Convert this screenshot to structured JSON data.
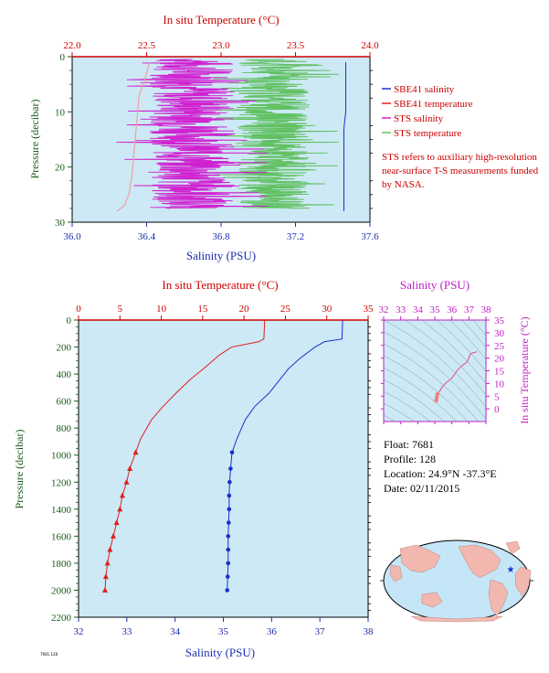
{
  "colors": {
    "plot_bg": "#cce9f5",
    "sbe41_salinity": "#1a2fcc",
    "sbe41_temperature": "#e02020",
    "sts_salinity": "#d020d0",
    "sts_temperature": "#60c060",
    "temperature_axis": "#cc0000",
    "salinity_axis": "#1a2fb0",
    "pressure_axis": "#1a5a1a",
    "ts_axis": "#c020c0",
    "land": "#f2b8b0",
    "ocean": "#c4e6f6"
  },
  "float_info": {
    "float": "Float:  7681",
    "profile": "Profile:  128",
    "location": "Location:  24.9°N  -37.3°E",
    "date": "Date:  02/11/2015"
  },
  "note_text": "STS refers to auxiliary high-resolution near-surface T-S measurements funded by NASA.",
  "footer_text": "7681.128",
  "map": {
    "marker": "float-position-star"
  },
  "chart_data": [
    {
      "type": "line",
      "id": "near-surface",
      "xlabel": "Salinity (PSU)",
      "x2label": "In situ Temperature (°C)",
      "ylabel": "Pressure (decibar)",
      "xlim": [
        36.0,
        37.6
      ],
      "x2lim": [
        22.0,
        24.0
      ],
      "ylim": [
        30,
        0
      ],
      "xticks": [
        "36.0",
        "36.4",
        "36.8",
        "37.2",
        "37.6"
      ],
      "x2ticks": [
        "22.0",
        "22.5",
        "23.0",
        "23.5",
        "24.0"
      ],
      "yticks": [
        "0",
        "10",
        "20",
        "30"
      ],
      "legend": [
        "SBE41 salinity",
        "SBE41 temperature",
        "STS salinity",
        "STS temperature"
      ],
      "legend_position": "right",
      "series": [
        {
          "name": "SBE41 salinity",
          "axis": "salinity",
          "x": [
            37.47,
            37.47,
            37.47,
            37.47,
            37.46,
            37.46,
            37.46,
            37.46,
            37.46,
            37.46
          ],
          "y": [
            1,
            4,
            7,
            10,
            13,
            16,
            19,
            22,
            25,
            28
          ]
        },
        {
          "name": "SBE41 temperature",
          "axis": "temperature",
          "x": [
            22.52,
            22.49,
            22.45,
            22.44,
            22.43,
            22.42,
            22.41,
            22.4,
            22.38,
            22.35,
            22.3
          ],
          "y": [
            1,
            4,
            7,
            10,
            13,
            16,
            19,
            22,
            25,
            27,
            28
          ]
        },
        {
          "name": "STS salinity",
          "axis": "salinity",
          "x_range": [
            36.2,
            37.05
          ],
          "center": 36.65,
          "y_range": [
            0.5,
            27.5
          ],
          "pattern": "noisy"
        },
        {
          "name": "STS temperature",
          "axis": "temperature",
          "x_range": [
            22.95,
            23.85
          ],
          "center": 23.35,
          "y_range": [
            0.5,
            27.5
          ],
          "pattern": "noisy"
        }
      ]
    },
    {
      "type": "line",
      "id": "full-profile",
      "xlabel": "Salinity (PSU)",
      "x2label": "In situ Temperature (°C)",
      "ylabel": "Pressure (decibar)",
      "xlim": [
        32,
        38
      ],
      "x2lim": [
        0,
        35
      ],
      "ylim": [
        2200,
        0
      ],
      "xticks": [
        "32",
        "33",
        "34",
        "35",
        "36",
        "37",
        "38"
      ],
      "x2ticks": [
        "0",
        "5",
        "10",
        "15",
        "20",
        "25",
        "30",
        "35"
      ],
      "yticks": [
        "0",
        "200",
        "400",
        "600",
        "800",
        "1000",
        "1200",
        "1400",
        "1600",
        "1800",
        "2000",
        "2200"
      ],
      "series": [
        {
          "name": "SBE41 temperature",
          "axis": "temperature",
          "x": [
            22.5,
            22.4,
            21.8,
            18.5,
            17.0,
            15.5,
            13.5,
            11.8,
            10.2,
            8.8,
            7.5,
            6.9,
            6.2,
            5.8,
            5.3,
            5.0,
            4.6,
            4.2,
            3.8,
            3.5,
            3.3,
            3.2
          ],
          "y": [
            0,
            140,
            160,
            200,
            260,
            340,
            440,
            540,
            640,
            740,
            880,
            980,
            1100,
            1200,
            1300,
            1400,
            1500,
            1600,
            1700,
            1800,
            1900,
            2000
          ],
          "markers_from": 980
        },
        {
          "name": "SBE41 salinity",
          "axis": "salinity",
          "x": [
            37.47,
            37.46,
            37.1,
            36.9,
            36.6,
            36.35,
            36.15,
            35.95,
            35.65,
            35.45,
            35.28,
            35.18,
            35.15,
            35.13,
            35.12,
            35.12,
            35.11,
            35.1,
            35.1,
            35.1,
            35.09,
            35.08
          ],
          "y": [
            0,
            140,
            160,
            200,
            280,
            360,
            450,
            540,
            640,
            740,
            880,
            980,
            1100,
            1200,
            1300,
            1400,
            1500,
            1600,
            1700,
            1800,
            1900,
            2000
          ],
          "markers_from": 980
        }
      ]
    },
    {
      "type": "scatter",
      "id": "ts-diagram",
      "xlabel": "Salinity (PSU)",
      "ylabel": "In situ Temperature (°C)",
      "xlim": [
        32,
        38
      ],
      "ylim": [
        -5,
        35
      ],
      "xticks": [
        "32",
        "33",
        "34",
        "35",
        "36",
        "37",
        "38"
      ],
      "yticks": [
        "0",
        "5",
        "10",
        "15",
        "20",
        "25",
        "30",
        "35"
      ],
      "series": [
        {
          "name": "T-S profile",
          "x": [
            35.08,
            35.1,
            35.12,
            35.15,
            35.28,
            35.45,
            35.65,
            35.95,
            36.15,
            36.35,
            36.6,
            36.9,
            37.1,
            37.47
          ],
          "y": [
            3.2,
            3.8,
            4.6,
            5.8,
            6.9,
            8.8,
            10.2,
            11.8,
            13.5,
            15.5,
            17.0,
            18.5,
            21.8,
            22.5
          ]
        }
      ]
    }
  ]
}
